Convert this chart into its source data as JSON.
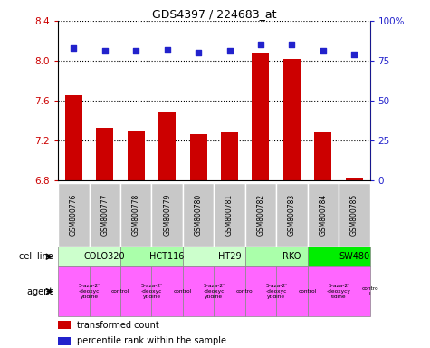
{
  "title": "GDS4397 / 224683_at",
  "samples": [
    "GSM800776",
    "GSM800777",
    "GSM800778",
    "GSM800779",
    "GSM800780",
    "GSM800781",
    "GSM800782",
    "GSM800783",
    "GSM800784",
    "GSM800785"
  ],
  "bar_values": [
    7.65,
    7.32,
    7.3,
    7.48,
    7.26,
    7.28,
    8.08,
    8.02,
    7.28,
    6.82
  ],
  "scatter_values": [
    83,
    81,
    81,
    82,
    80,
    81,
    85,
    85,
    81,
    79
  ],
  "bar_color": "#cc0000",
  "scatter_color": "#2222cc",
  "ylim_left": [
    6.8,
    8.4
  ],
  "ylim_right": [
    0,
    100
  ],
  "yticks_left": [
    6.8,
    7.2,
    7.6,
    8.0,
    8.4
  ],
  "yticks_right": [
    0,
    25,
    50,
    75,
    100
  ],
  "ytick_right_labels": [
    "0",
    "25",
    "50",
    "75",
    "100%"
  ],
  "cell_lines": [
    {
      "label": "COLO320",
      "start": 0,
      "end": 2,
      "color": "#ccffcc"
    },
    {
      "label": "HCT116",
      "start": 2,
      "end": 4,
      "color": "#aaffaa"
    },
    {
      "label": "HT29",
      "start": 4,
      "end": 6,
      "color": "#ccffcc"
    },
    {
      "label": "RKO",
      "start": 6,
      "end": 8,
      "color": "#aaffaa"
    },
    {
      "label": "SW480",
      "start": 8,
      "end": 10,
      "color": "#00ee00"
    }
  ],
  "agents": [
    {
      "label": "5-aza-2'\n-deoxyc\nytidine",
      "start": 0,
      "end": 1,
      "color": "#ff66ff"
    },
    {
      "label": "control",
      "start": 1,
      "end": 2,
      "color": "#ff66ff"
    },
    {
      "label": "5-aza-2'\n-deoxyc\nytidine",
      "start": 2,
      "end": 3,
      "color": "#ff66ff"
    },
    {
      "label": "control",
      "start": 3,
      "end": 4,
      "color": "#ff66ff"
    },
    {
      "label": "5-aza-2'\n-deoxyc\nytidine",
      "start": 4,
      "end": 5,
      "color": "#ff66ff"
    },
    {
      "label": "control",
      "start": 5,
      "end": 6,
      "color": "#ff66ff"
    },
    {
      "label": "5-aza-2'\n-deoxyc\nytidine",
      "start": 6,
      "end": 7,
      "color": "#ff66ff"
    },
    {
      "label": "control",
      "start": 7,
      "end": 8,
      "color": "#ff66ff"
    },
    {
      "label": "5-aza-2'\n-deoxycy\ntidine",
      "start": 8,
      "end": 9,
      "color": "#ff66ff"
    },
    {
      "label": "contro\nl",
      "start": 9,
      "end": 10,
      "color": "#ff66ff"
    }
  ],
  "legend_bar_label": "transformed count",
  "legend_scatter_label": "percentile rank within the sample",
  "cell_line_label": "cell line",
  "agent_label": "agent",
  "sample_bg_color": "#c8c8c8",
  "grid_yticks": [
    7.2,
    7.6,
    8.0,
    8.4
  ]
}
